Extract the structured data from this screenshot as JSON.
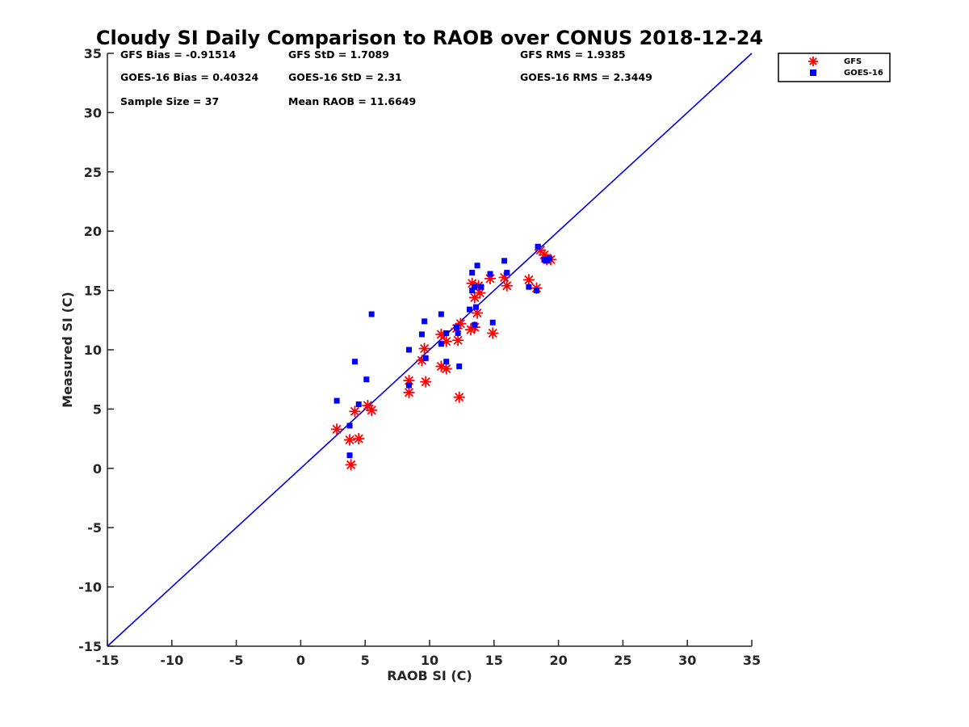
{
  "chart_data": {
    "type": "scatter",
    "title": "Cloudy SI Daily Comparison to RAOB over CONUS 2018-12-24",
    "xlabel": "RAOB SI (C)",
    "ylabel": "Measured SI (C)",
    "xlim": [
      -15,
      35
    ],
    "ylim": [
      -15,
      35
    ],
    "xticks": [
      -15,
      -10,
      -5,
      0,
      5,
      10,
      15,
      20,
      25,
      30,
      35
    ],
    "yticks": [
      -15,
      -10,
      -5,
      0,
      5,
      10,
      15,
      20,
      25,
      30,
      35
    ],
    "grid": false,
    "legend_position": "top-right-outside",
    "reference_line": {
      "x": [
        -15,
        35
      ],
      "y": [
        -15,
        35
      ],
      "color": "#0000dd"
    },
    "stats": {
      "row1": [
        "GFS Bias = -0.91514",
        "GFS StD = 1.7089",
        "GFS RMS = 1.9385"
      ],
      "row2": [
        "GOES-16 Bias = 0.40324",
        "GOES-16 StD = 2.31",
        "GOES-16 RMS = 2.3449"
      ],
      "row3": [
        "Sample Size = 37",
        "Mean RAOB = 11.6649"
      ]
    },
    "series": [
      {
        "name": "GFS",
        "marker": "asterisk",
        "color": "#ff0000",
        "points": [
          [
            2.8,
            3.3
          ],
          [
            3.9,
            0.3
          ],
          [
            3.8,
            2.4
          ],
          [
            4.5,
            2.5
          ],
          [
            4.2,
            4.8
          ],
          [
            5.2,
            5.3
          ],
          [
            5.5,
            4.9
          ],
          [
            8.4,
            7.4
          ],
          [
            8.4,
            6.4
          ],
          [
            9.4,
            9.1
          ],
          [
            9.6,
            10.1
          ],
          [
            9.7,
            7.3
          ],
          [
            10.9,
            8.6
          ],
          [
            11.3,
            8.4
          ],
          [
            10.9,
            11.3
          ],
          [
            11.3,
            10.7
          ],
          [
            12.1,
            11.8
          ],
          [
            12.4,
            12.2
          ],
          [
            12.2,
            10.8
          ],
          [
            12.3,
            6.0
          ],
          [
            13.2,
            11.7
          ],
          [
            13.5,
            11.9
          ],
          [
            13.3,
            15.6
          ],
          [
            13.5,
            14.4
          ],
          [
            13.8,
            15.4
          ],
          [
            13.7,
            13.1
          ],
          [
            13.9,
            14.8
          ],
          [
            14.7,
            16.0
          ],
          [
            14.9,
            11.4
          ],
          [
            15.8,
            16.1
          ],
          [
            16.0,
            15.4
          ],
          [
            17.7,
            15.9
          ],
          [
            18.3,
            15.2
          ],
          [
            18.6,
            18.4
          ],
          [
            18.9,
            18.0
          ],
          [
            19.1,
            17.6
          ],
          [
            19.4,
            17.6
          ]
        ]
      },
      {
        "name": "GOES-16",
        "marker": "square",
        "color": "#0000ff",
        "points": [
          [
            2.8,
            5.7
          ],
          [
            3.8,
            1.1
          ],
          [
            3.8,
            3.6
          ],
          [
            4.2,
            9.0
          ],
          [
            4.5,
            5.4
          ],
          [
            5.1,
            7.5
          ],
          [
            5.5,
            13.0
          ],
          [
            8.4,
            10.0
          ],
          [
            8.4,
            7.0
          ],
          [
            9.4,
            11.3
          ],
          [
            9.6,
            12.4
          ],
          [
            9.7,
            9.3
          ],
          [
            10.9,
            13.0
          ],
          [
            10.9,
            10.5
          ],
          [
            11.3,
            11.4
          ],
          [
            11.3,
            9.0
          ],
          [
            12.1,
            11.9
          ],
          [
            12.2,
            11.4
          ],
          [
            12.3,
            8.6
          ],
          [
            13.1,
            13.4
          ],
          [
            13.3,
            16.5
          ],
          [
            13.3,
            15.0
          ],
          [
            13.5,
            12.1
          ],
          [
            13.5,
            15.3
          ],
          [
            13.6,
            13.6
          ],
          [
            13.7,
            17.1
          ],
          [
            14.0,
            15.3
          ],
          [
            14.7,
            16.4
          ],
          [
            14.9,
            12.3
          ],
          [
            15.8,
            17.5
          ],
          [
            16.0,
            16.5
          ],
          [
            17.7,
            15.3
          ],
          [
            18.3,
            15.0
          ],
          [
            18.4,
            18.7
          ],
          [
            18.9,
            17.6
          ],
          [
            19.1,
            17.5
          ],
          [
            19.3,
            17.7
          ]
        ]
      }
    ]
  }
}
